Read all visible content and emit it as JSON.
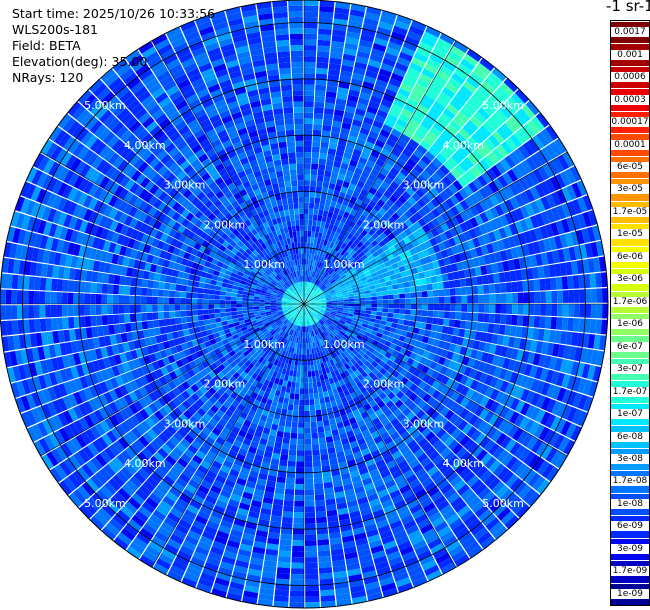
{
  "header": {
    "start_time": "Start time: 2025/10/26 10:33:56",
    "instrument": "WLS200s-181",
    "field": "Field: BETA",
    "elevation": "Elevation(deg): 35.00",
    "nrays": "NRays: 120"
  },
  "colorbar": {
    "title": "-1 sr-1",
    "ticks": [
      "0.0017",
      "0.001",
      "0.0006",
      "0.0003",
      "0.00017",
      "0.0001",
      "6e-05",
      "3e-05",
      "1.7e-05",
      "1e-05",
      "6e-06",
      "3e-06",
      "1.7e-06",
      "1e-06",
      "6e-07",
      "3e-07",
      "1.7e-07",
      "1e-07",
      "6e-08",
      "3e-08",
      "1.7e-08",
      "1e-08",
      "6e-09",
      "3e-09",
      "1.7e-09",
      "1e-09"
    ],
    "colors": [
      "#7f0000",
      "#a50000",
      "#cc0000",
      "#ee0000",
      "#ff2000",
      "#ff4a00",
      "#ff7000",
      "#ff9600",
      "#ffbc00",
      "#ffe000",
      "#f5ff00",
      "#d8ff10",
      "#b5ff33",
      "#90ff66",
      "#6bff8c",
      "#45ffb2",
      "#1fffd8",
      "#00e8ff",
      "#00c2ff",
      "#009cff",
      "#0076ff",
      "#0050ff",
      "#002aff",
      "#0006f0",
      "#0000c4",
      "#000098"
    ]
  },
  "chart_data": {
    "type": "heatmap",
    "subtype": "polar-ppi",
    "field": "BETA",
    "elevation_deg": 35.0,
    "n_rays": 120,
    "max_range_km": 5.4,
    "range_rings_km": [
      1.0,
      2.0,
      3.0,
      4.0,
      5.0
    ],
    "ring_labels": [
      "1.00km",
      "2.00km",
      "3.00km",
      "4.00km",
      "5.00km"
    ],
    "colorscale": "log",
    "value_range": [
      1e-09,
      0.0017
    ],
    "typical_value": 1e-08,
    "features": [
      {
        "azimuth_deg": [
          25,
          55
        ],
        "range_km": [
          3.5,
          5.3
        ],
        "value": 1.5e-07
      },
      {
        "azimuth_deg": [
          55,
          85
        ],
        "range_km": [
          0.3,
          2.5
        ],
        "value": 4e-08
      },
      {
        "azimuth_deg": [
          0,
          360
        ],
        "range_km": [
          0.0,
          0.4
        ],
        "value": 1e-07
      }
    ]
  }
}
